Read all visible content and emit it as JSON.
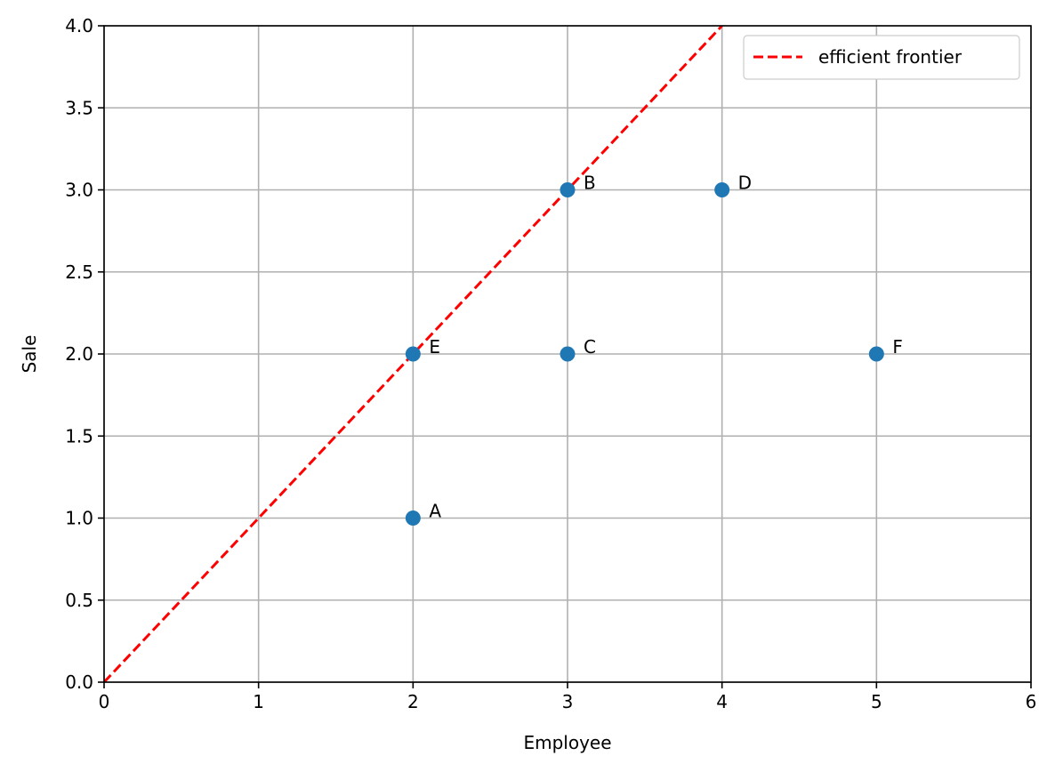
{
  "chart_data": {
    "type": "scatter",
    "title": "",
    "xlabel": "Employee",
    "ylabel": "Sale",
    "xlim": [
      0,
      6
    ],
    "ylim": [
      0,
      4.0
    ],
    "x_ticks": [
      0,
      1,
      2,
      3,
      4,
      5,
      6
    ],
    "x_tick_labels": [
      "0",
      "1",
      "2",
      "3",
      "4",
      "5",
      "6"
    ],
    "y_ticks": [
      0,
      0.5,
      1.0,
      1.5,
      2.0,
      2.5,
      3.0,
      3.5,
      4.0
    ],
    "y_tick_labels": [
      "0.0",
      "0.5",
      "1.0",
      "1.5",
      "2.0",
      "2.5",
      "3.0",
      "3.5",
      "4.0"
    ],
    "grid": true,
    "points": [
      {
        "label": "A",
        "x": 2,
        "y": 1
      },
      {
        "label": "B",
        "x": 3,
        "y": 3
      },
      {
        "label": "C",
        "x": 3,
        "y": 2
      },
      {
        "label": "D",
        "x": 4,
        "y": 3
      },
      {
        "label": "E",
        "x": 2,
        "y": 2
      },
      {
        "label": "F",
        "x": 5,
        "y": 2
      }
    ],
    "point_color": "#1f77b4",
    "lines": [
      {
        "name": "efficient frontier",
        "x": [
          0,
          4
        ],
        "y": [
          0,
          4
        ],
        "color": "#ff0000",
        "style": "dashed"
      }
    ],
    "legend": {
      "placement": "top-right",
      "entries": [
        "efficient frontier"
      ]
    }
  }
}
